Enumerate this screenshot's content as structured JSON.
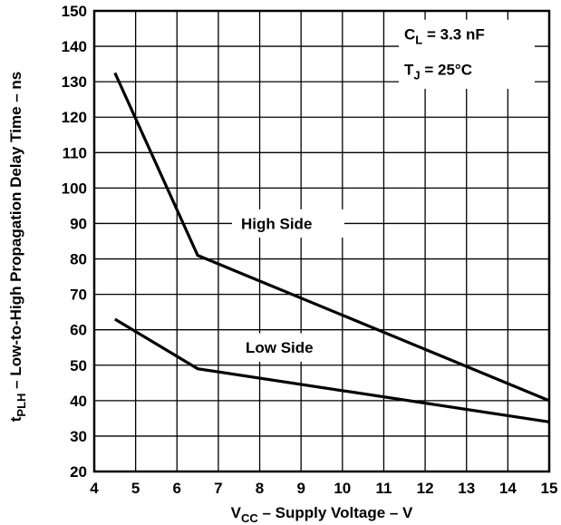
{
  "chart_data": {
    "type": "line",
    "title": "",
    "xlabel_main": "V",
    "xlabel_sub": "CC",
    "xlabel_rest": " – Supply  Voltage – V",
    "ylabel_main": "t",
    "ylabel_sub": "PLH",
    "ylabel_rest": "  – Low-to-High Propagation Delay Time – ns",
    "xlim": [
      4,
      15
    ],
    "ylim": [
      20,
      150
    ],
    "x_ticks": [
      4,
      5,
      6,
      7,
      8,
      9,
      10,
      11,
      12,
      13,
      14,
      15
    ],
    "y_ticks": [
      20,
      30,
      40,
      50,
      60,
      70,
      80,
      90,
      100,
      110,
      120,
      130,
      140,
      150
    ],
    "grid": true,
    "series": [
      {
        "name": "High Side",
        "x": [
          4.5,
          6.5,
          15
        ],
        "y": [
          132.5,
          81,
          40
        ]
      },
      {
        "name": "Low Side",
        "x": [
          4.5,
          6.5,
          15
        ],
        "y": [
          63,
          49,
          34
        ]
      }
    ],
    "annotations": {
      "cl_main": "C",
      "cl_sub": "L",
      "cl_rest": " = 3.3 nF",
      "tj_main": "T",
      "tj_sub": "J",
      "tj_rest": " = 25°C"
    }
  }
}
